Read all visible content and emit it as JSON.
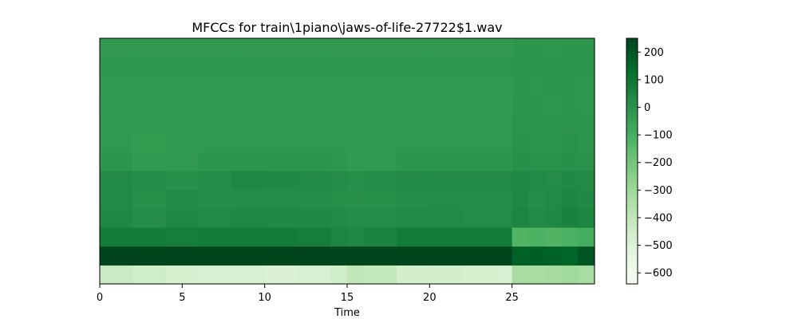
{
  "chart_data": {
    "type": "heatmap",
    "title": "MFCCs for train\\1piano\\jaws-of-life-27722$1.wav",
    "xlabel": "Time",
    "ylabel": "",
    "xlim": [
      0,
      30
    ],
    "x_ticks": [
      0,
      5,
      10,
      15,
      20,
      25
    ],
    "n_coefficients": 13,
    "colormap": "Greens",
    "colorbar": {
      "range": [
        -640,
        250
      ],
      "ticks": [
        200,
        100,
        0,
        -100,
        -200,
        -300,
        -400,
        -500,
        -600
      ],
      "tick_labels": [
        "200",
        "100",
        "0",
        "−100",
        "−200",
        "−300",
        "−400",
        "−500",
        "−600"
      ]
    },
    "segments_time": [
      0,
      2,
      4,
      6,
      8,
      10,
      12,
      14,
      15,
      16,
      18,
      20,
      22,
      24,
      25,
      26,
      27,
      28,
      29,
      30
    ],
    "rows_approx_values": [
      {
        "coef": 0,
        "values": [
          -430,
          -450,
          -470,
          -480,
          -480,
          -490,
          -480,
          -450,
          -400,
          -410,
          -460,
          -460,
          -470,
          -480,
          -330,
          -330,
          -320,
          -310,
          -330
        ]
      },
      {
        "coef": 1,
        "values": [
          250,
          250,
          250,
          250,
          250,
          250,
          250,
          250,
          250,
          250,
          250,
          250,
          250,
          250,
          170,
          180,
          170,
          160,
          200
        ]
      },
      {
        "coef": 2,
        "values": [
          80,
          80,
          75,
          80,
          80,
          80,
          75,
          50,
          40,
          55,
          80,
          80,
          80,
          80,
          -120,
          -110,
          -120,
          -110,
          -90
        ]
      },
      {
        "coef": 3,
        "values": [
          40,
          20,
          40,
          30,
          40,
          35,
          35,
          30,
          20,
          25,
          30,
          30,
          25,
          25,
          50,
          30,
          40,
          60,
          45
        ]
      },
      {
        "coef": 4,
        "values": [
          30,
          10,
          30,
          20,
          20,
          25,
          20,
          15,
          10,
          15,
          20,
          25,
          20,
          25,
          40,
          20,
          30,
          45,
          35
        ]
      },
      {
        "coef": 5,
        "values": [
          30,
          20,
          10,
          25,
          40,
          35,
          30,
          25,
          15,
          25,
          30,
          30,
          30,
          30,
          35,
          30,
          25,
          35,
          30
        ]
      },
      {
        "coef": 6,
        "values": [
          -10,
          -25,
          -20,
          -10,
          -5,
          -5,
          -10,
          -15,
          -25,
          -20,
          -10,
          -10,
          -10,
          -10,
          10,
          5,
          0,
          10,
          5
        ]
      },
      {
        "coef": 7,
        "values": [
          -20,
          -30,
          -25,
          -20,
          -20,
          -20,
          -20,
          -20,
          -25,
          -20,
          -20,
          -20,
          -20,
          -20,
          0,
          -5,
          -10,
          0,
          -5
        ]
      },
      {
        "coef": 8,
        "values": [
          -20,
          -20,
          -25,
          -20,
          -20,
          -20,
          -20,
          -25,
          -25,
          -20,
          -20,
          -20,
          -20,
          -20,
          -5,
          -10,
          -10,
          -5,
          -10
        ]
      },
      {
        "coef": 9,
        "values": [
          -25,
          -25,
          -20,
          -25,
          -25,
          -25,
          -25,
          -25,
          -25,
          -25,
          -25,
          -25,
          -25,
          -25,
          -10,
          -10,
          -15,
          -10,
          -15
        ]
      },
      {
        "coef": 10,
        "values": [
          -20,
          -20,
          -20,
          -20,
          -20,
          -20,
          -20,
          -20,
          -20,
          -20,
          -20,
          -20,
          -20,
          -20,
          -10,
          -15,
          -10,
          -10,
          -15
        ]
      },
      {
        "coef": 11,
        "values": [
          -15,
          -15,
          -15,
          -15,
          -15,
          -15,
          -15,
          -15,
          -15,
          -15,
          -15,
          -15,
          -15,
          -15,
          -5,
          -10,
          -5,
          -10,
          -10
        ]
      },
      {
        "coef": 12,
        "values": [
          -20,
          -20,
          -20,
          -20,
          -20,
          -20,
          -20,
          -20,
          -20,
          -20,
          -20,
          -20,
          -20,
          -20,
          -10,
          -10,
          -15,
          -10,
          -10
        ]
      }
    ]
  }
}
